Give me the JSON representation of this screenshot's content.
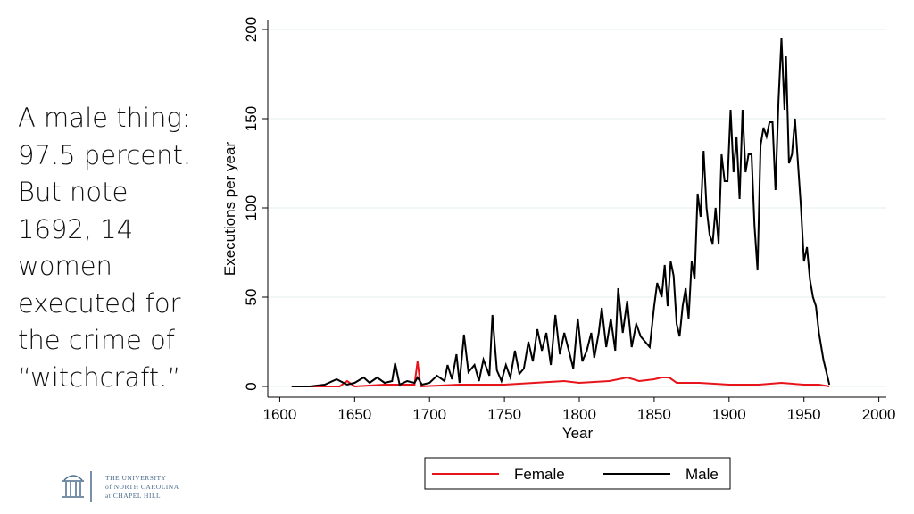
{
  "note": {
    "lines": [
      "A male thing:",
      "97.5 percent.",
      "But note",
      "1692, 14",
      "women",
      "executed for",
      "the crime of",
      "“witchcraft.”"
    ]
  },
  "logo": {
    "lines": [
      "THE UNIVERSITY",
      "of NORTH CAROLINA",
      "at CHAPEL HILL"
    ]
  },
  "chart_data": {
    "type": "line",
    "xlabel": "Year",
    "ylabel": "Executions per year",
    "xlim": [
      1592,
      2005
    ],
    "ylim": [
      -6,
      205.5
    ],
    "xticks": [
      1600,
      1650,
      1700,
      1750,
      1800,
      1850,
      1900,
      1950,
      2000
    ],
    "yticks": [
      0,
      50,
      100,
      150,
      200
    ],
    "grid": true,
    "legend": "bottom",
    "series": [
      {
        "name": "Female",
        "color": "#e8141b",
        "x": [
          1608,
          1640,
          1645,
          1650,
          1670,
          1690,
          1692,
          1694,
          1720,
          1750,
          1770,
          1790,
          1800,
          1820,
          1832,
          1840,
          1850,
          1855,
          1860,
          1865,
          1880,
          1900,
          1920,
          1935,
          1950,
          1960,
          1967
        ],
        "values": [
          0,
          0,
          3,
          0,
          1,
          1,
          14,
          0,
          1,
          1,
          2,
          3,
          2,
          3,
          5,
          3,
          4,
          5,
          5,
          2,
          2,
          1,
          1,
          2,
          1,
          1,
          0
        ]
      },
      {
        "name": "Male",
        "color": "#000000",
        "x": [
          1608,
          1620,
          1630,
          1638,
          1645,
          1650,
          1656,
          1660,
          1665,
          1670,
          1675,
          1677,
          1680,
          1685,
          1690,
          1692,
          1695,
          1700,
          1705,
          1710,
          1712,
          1715,
          1718,
          1720,
          1723,
          1726,
          1730,
          1733,
          1736,
          1740,
          1742,
          1745,
          1748,
          1751,
          1754,
          1757,
          1760,
          1763,
          1766,
          1769,
          1772,
          1775,
          1778,
          1781,
          1784,
          1787,
          1790,
          1793,
          1796,
          1799,
          1802,
          1805,
          1808,
          1810,
          1813,
          1815,
          1818,
          1821,
          1824,
          1826,
          1829,
          1832,
          1835,
          1838,
          1841,
          1844,
          1847,
          1850,
          1852,
          1855,
          1857,
          1859,
          1861,
          1863,
          1865,
          1867,
          1869,
          1871,
          1873,
          1875,
          1877,
          1879,
          1881,
          1883,
          1885,
          1887,
          1889,
          1891,
          1893,
          1895,
          1897,
          1899,
          1901,
          1903,
          1905,
          1907,
          1909,
          1911,
          1913,
          1915,
          1917,
          1919,
          1921,
          1923,
          1925,
          1927,
          1929,
          1931,
          1933,
          1935,
          1937,
          1938,
          1940,
          1942,
          1944,
          1946,
          1948,
          1950,
          1952,
          1954,
          1956,
          1958,
          1960,
          1963,
          1967
        ],
        "values": [
          0,
          0,
          1,
          4,
          1,
          2,
          5,
          2,
          5,
          2,
          3,
          13,
          1,
          3,
          2,
          5,
          1,
          2,
          6,
          3,
          12,
          4,
          18,
          2,
          29,
          8,
          12,
          3,
          15,
          6,
          40,
          9,
          3,
          12,
          5,
          20,
          7,
          10,
          25,
          14,
          32,
          20,
          30,
          12,
          40,
          18,
          30,
          20,
          10,
          38,
          14,
          20,
          30,
          16,
          30,
          44,
          22,
          38,
          20,
          55,
          30,
          48,
          22,
          35,
          28,
          25,
          22,
          45,
          58,
          50,
          68,
          45,
          70,
          62,
          35,
          28,
          45,
          55,
          38,
          70,
          60,
          108,
          95,
          132,
          100,
          85,
          80,
          100,
          80,
          130,
          115,
          115,
          155,
          120,
          140,
          105,
          155,
          120,
          130,
          130,
          90,
          65,
          135,
          145,
          140,
          148,
          148,
          110,
          160,
          195,
          155,
          185,
          125,
          130,
          150,
          125,
          100,
          70,
          78,
          60,
          50,
          45,
          30,
          15,
          1
        ]
      }
    ]
  }
}
